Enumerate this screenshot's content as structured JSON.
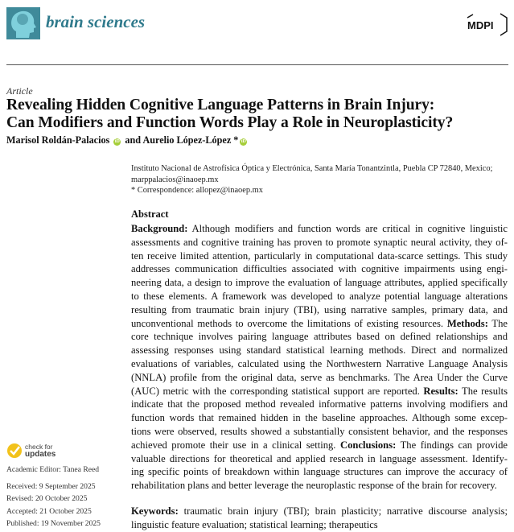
{
  "header": {
    "journal": "brain sciences",
    "publisher": "MDPI"
  },
  "article_type": "Article",
  "title": [
    "Revealing Hidden Cognitive Language Patterns in Brain Injury:",
    "Can Modifiers and Function Words Play a Role in Neuroplasticity?"
  ],
  "authors": {
    "first": "Marisol Roldán-Palacios",
    "and": "and",
    "second": "Aurelio López-López",
    "star": "*"
  },
  "affiliation": {
    "line1": "Instituto Nacional de Astrofísica Óptica y Electrónica, Santa María Tonantzintla, Puebla CP 72840, Mexico;",
    "line2": "marppalacios@inaoep.mx",
    "correspondence": "*  Correspondence: allopez@inaoep.mx"
  },
  "abstract": {
    "heading": "Abstract",
    "lines": [
      [
        {
          "b": true,
          "t": "Background:"
        },
        {
          "t": " Although modifiers and function words are critical in cognitive linguistic"
        }
      ],
      [
        {
          "t": "assessments and cognitive training has proven to promote synaptic neural activity, they of-"
        }
      ],
      [
        {
          "t": "ten receive limited attention, particularly in computational data-scarce settings. This study"
        }
      ],
      [
        {
          "t": "addresses communication difficulties associated with cognitive impairments using engi-"
        }
      ],
      [
        {
          "t": "neering data, a design to improve the evaluation of language attributes, applied specifically"
        }
      ],
      [
        {
          "t": "to these elements. A framework was developed to analyze potential language alterations"
        }
      ],
      [
        {
          "t": "resulting from traumatic brain injury (TBI), using narrative samples, primary data, and"
        }
      ],
      [
        {
          "t": "unconventional methods to overcome the limitations of existing resources. "
        },
        {
          "b": true,
          "t": "Methods:"
        },
        {
          "t": " The"
        }
      ],
      [
        {
          "t": "core technique involves pairing language attributes based on defined relationships and"
        }
      ],
      [
        {
          "t": "assessing responses using standard statistical learning methods. Direct and normalized"
        }
      ],
      [
        {
          "t": "evaluations of variables, calculated using the Northwestern Narrative Language Analysis"
        }
      ],
      [
        {
          "t": "(NNLA) profile from the original data, serve as benchmarks. The Area Under the Curve"
        }
      ],
      [
        {
          "t": "(AUC) metric with the corresponding statistical support are reported. "
        },
        {
          "b": true,
          "t": "Results:"
        },
        {
          "t": " The results"
        }
      ],
      [
        {
          "t": "indicate that the proposed method revealed informative patterns involving modifiers and"
        }
      ],
      [
        {
          "t": "function words that remained hidden in the baseline approaches. Although some excep-"
        }
      ],
      [
        {
          "t": "tions were observed, results showed a substantially consistent behavior, and the responses"
        }
      ],
      [
        {
          "t": "achieved promote their use in a clinical setting. "
        },
        {
          "b": true,
          "t": "Conclusions:"
        },
        {
          "t": " The findings can provide"
        }
      ],
      [
        {
          "t": "valuable directions for theoretical and applied research in language assessment. Identify-"
        }
      ],
      [
        {
          "t": "ing specific points of breakdown within language structures can improve the accuracy of"
        }
      ],
      [
        {
          "t": "rehabilitation plans and better leverage the neuroplastic response of the brain for recovery."
        }
      ]
    ]
  },
  "keywords": {
    "label": "Keywords:",
    "line1": "traumatic brain injury (TBI); brain plasticity; narrative discourse analysis;",
    "line2": "linguistic feature evaluation; statistical learning; therapeutics"
  },
  "sidebar": {
    "check_updates": [
      "check for",
      "updates"
    ],
    "editor": "Academic Editor: Tanea Reed",
    "received": "Received: 9 September 2025",
    "revised": "Revised: 20 October 2025",
    "accepted": "Accepted: 21 October 2025",
    "published": "Published: 19 November 2025"
  },
  "colors": {
    "journal_teal": "#2f7a8c",
    "orcid_green": "#a6ce39",
    "check_yellow": "#f2c21b"
  }
}
